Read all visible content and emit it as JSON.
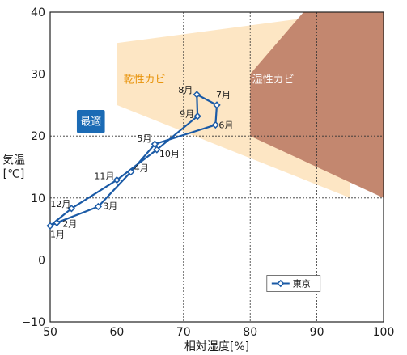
{
  "chart_data": {
    "type": "line",
    "xlabel": "相対湿度[%]",
    "ylabel_line1": "気温",
    "ylabel_line2": "[℃]",
    "xlim": [
      50,
      100
    ],
    "ylim": [
      -10,
      40
    ],
    "xticks": [
      50,
      60,
      70,
      80,
      90,
      100
    ],
    "yticks": [
      -10,
      0,
      10,
      20,
      30,
      40
    ],
    "grid": "dotted",
    "legend_position": "bottom-right",
    "series": [
      {
        "name": "東京",
        "color": "#1a5aa6",
        "points": [
          {
            "label": "1月",
            "x": 50.0,
            "y": 5.5
          },
          {
            "label": "2月",
            "x": 51.0,
            "y": 6.0
          },
          {
            "label": "3月",
            "x": 57.2,
            "y": 8.6
          },
          {
            "label": "4月",
            "x": 62.1,
            "y": 14.2
          },
          {
            "label": "5月",
            "x": 65.7,
            "y": 18.7
          },
          {
            "label": "6月",
            "x": 74.8,
            "y": 21.8
          },
          {
            "label": "7月",
            "x": 75.0,
            "y": 25.0
          },
          {
            "label": "8月",
            "x": 72.0,
            "y": 26.7
          },
          {
            "label": "9月",
            "x": 72.1,
            "y": 23.2
          },
          {
            "label": "10月",
            "x": 66.0,
            "y": 17.8
          },
          {
            "label": "11月",
            "x": 60.0,
            "y": 12.9
          },
          {
            "label": "12月",
            "x": 53.2,
            "y": 8.3
          }
        ]
      }
    ],
    "regions": [
      {
        "label": "乾性カビ",
        "color": "#fde6c4",
        "label_color": "#e8940c",
        "polygon": [
          [
            60,
            35
          ],
          [
            95,
            40
          ],
          [
            95,
            10
          ],
          [
            60,
            25
          ]
        ]
      },
      {
        "label": "湿性カビ",
        "color": "#c3876f",
        "label_color": "#ffffff",
        "polygon": [
          [
            80,
            30
          ],
          [
            88,
            40
          ],
          [
            100,
            40
          ],
          [
            100,
            10
          ],
          [
            80,
            20
          ]
        ]
      }
    ],
    "optimal_badge": {
      "label": "最適",
      "color": "#1b6bb5",
      "text_color": "#ffffff"
    }
  }
}
